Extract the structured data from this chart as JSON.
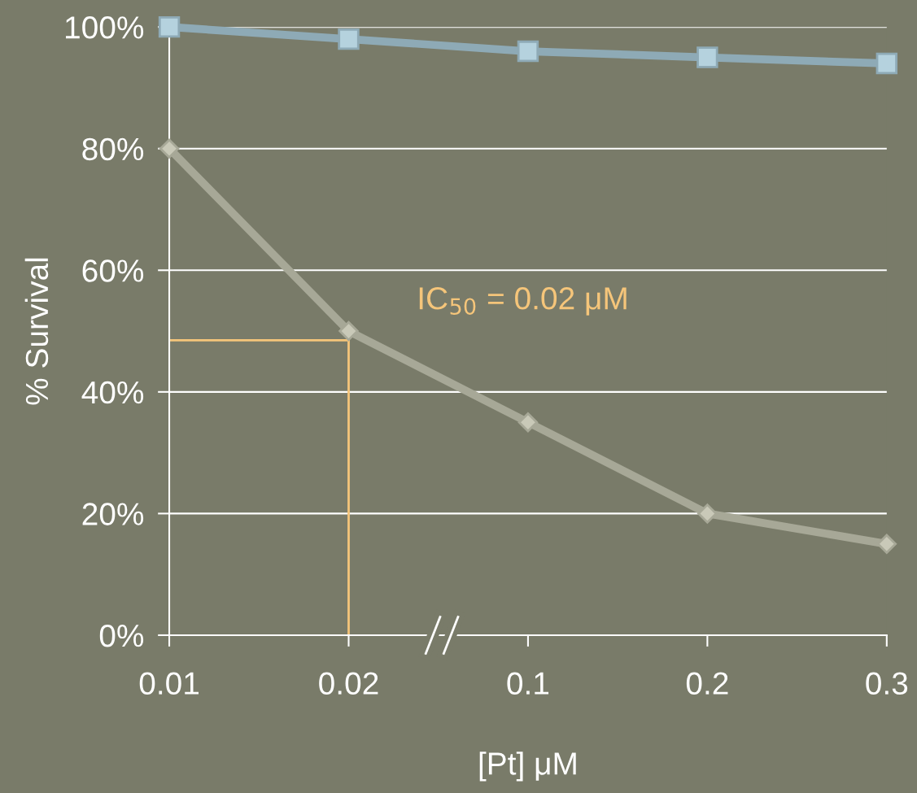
{
  "chart_data": {
    "type": "line",
    "xlabel": "[Pt] μM",
    "ylabel": "% Survival",
    "categories": [
      "0.01",
      "0.02",
      "0.1",
      "0.2",
      "0.3"
    ],
    "series": [
      {
        "color": "#8eaab6",
        "values": [
          100,
          98,
          96,
          95,
          94
        ],
        "marker": "square"
      },
      {
        "color": "#a7a897",
        "values": [
          80,
          50,
          35,
          20,
          15
        ],
        "marker": "diamond"
      }
    ],
    "ylim": [
      0,
      100
    ],
    "yticks": [
      {
        "value": 0,
        "label": "0%"
      },
      {
        "value": 20,
        "label": "20%"
      },
      {
        "value": 40,
        "label": "40%"
      },
      {
        "value": 60,
        "label": "60%"
      },
      {
        "value": 80,
        "label": "80%"
      },
      {
        "value": 100,
        "label": "100%"
      }
    ],
    "grid": "y",
    "line_style": "solid",
    "annotations": [
      {
        "text": "IC$_{50}$ = 0.02 μM",
        "x": "0.02",
        "y": 48.5
      }
    ]
  }
}
